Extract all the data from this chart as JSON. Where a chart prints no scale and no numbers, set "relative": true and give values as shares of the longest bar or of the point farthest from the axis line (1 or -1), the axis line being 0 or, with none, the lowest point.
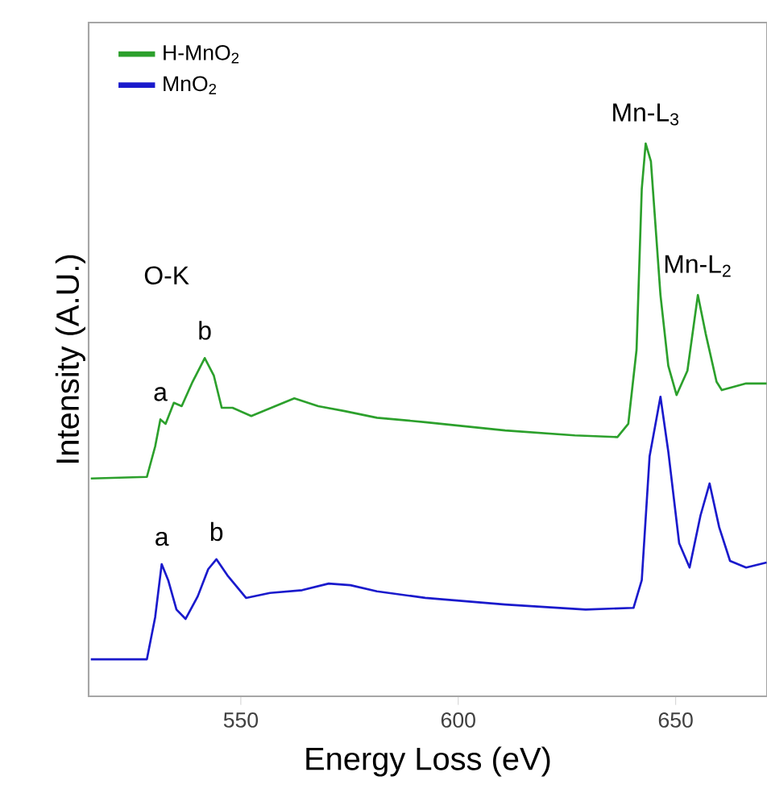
{
  "chart_data": {
    "type": "line",
    "xlabel": "Energy Loss (eV)",
    "ylabel": "Intensity (A.U.)",
    "relative": true,
    "xlim": [
      515,
      671
    ],
    "xticks": [
      550,
      600,
      650
    ],
    "legend": "top left",
    "grid": false,
    "series": [
      {
        "name": "H-MnO$_{2}$",
        "color": "#2ca02c",
        "x": [
          515.5,
          528.4,
          530.3,
          531.5,
          532.7,
          534.6,
          536.4,
          538.9,
          541.7,
          543.8,
          545.6,
          548.1,
          552.4,
          557.9,
          562.3,
          567.8,
          573.9,
          581.3,
          592.4,
          610.8,
          626.8,
          636.6,
          639.1,
          641.0,
          642.2,
          643.1,
          644.3,
          646.5,
          648.3,
          650.2,
          652.7,
          655.1,
          656.9,
          659.4,
          660.6,
          666.2,
          670.9
        ],
        "values": [
          0.394,
          0.397,
          0.452,
          0.501,
          0.493,
          0.531,
          0.525,
          0.569,
          0.612,
          0.58,
          0.522,
          0.522,
          0.507,
          0.525,
          0.539,
          0.525,
          0.516,
          0.504,
          0.496,
          0.481,
          0.472,
          0.469,
          0.493,
          0.627,
          0.918,
          1.0,
          0.968,
          0.726,
          0.598,
          0.545,
          0.589,
          0.726,
          0.656,
          0.569,
          0.554,
          0.566,
          0.566
        ]
      },
      {
        "name": "MnO$_{2}$",
        "color": "#1a1acc",
        "x": [
          515.5,
          528.4,
          530.3,
          531.8,
          533.3,
          535.2,
          537.3,
          540.1,
          542.5,
          544.4,
          546.9,
          551.2,
          556.7,
          564.1,
          570.2,
          575.2,
          581.3,
          592.4,
          610.8,
          629.3,
          640.3,
          642.2,
          644.0,
          646.5,
          648.3,
          650.8,
          653.2,
          655.7,
          657.8,
          660.0,
          662.5,
          666.2,
          670.9
        ],
        "values": [
          0.067,
          0.067,
          0.143,
          0.239,
          0.21,
          0.157,
          0.14,
          0.181,
          0.23,
          0.248,
          0.219,
          0.178,
          0.187,
          0.192,
          0.204,
          0.201,
          0.19,
          0.178,
          0.166,
          0.157,
          0.16,
          0.21,
          0.434,
          0.542,
          0.443,
          0.277,
          0.233,
          0.327,
          0.385,
          0.306,
          0.245,
          0.233,
          0.242
        ]
      }
    ],
    "annotations": [
      "O-K",
      {
        "text": "b",
        "x": 541.7,
        "y": 0.612
      },
      {
        "text": "a",
        "x": 531.5,
        "y": 0.501
      },
      {
        "text": "a",
        "x": 531.8,
        "y": 0.239
      },
      {
        "text": "b",
        "x": 544.4,
        "y": 0.248
      },
      {
        "text": "Mn-L$_{3}$",
        "x": 643.1,
        "y": 1.0
      },
      {
        "text": "Mn-L$_{2}$",
        "x": 655.1,
        "y": 0.726
      }
    ]
  }
}
